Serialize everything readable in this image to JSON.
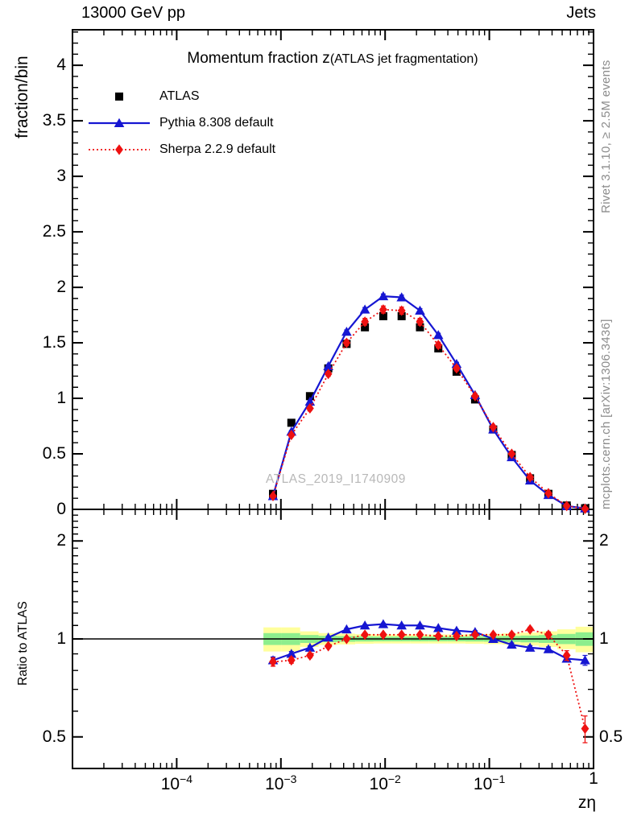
{
  "header": {
    "left": "13000 GeV pp",
    "right": "Jets"
  },
  "title": {
    "main": "Momentum fraction z",
    "paren": "(ATLAS jet fragmentation)"
  },
  "watermark": "ATLAS_2019_I1740909",
  "side_notes": {
    "top": "Rivet 3.1.10, ≥ 2.5M events",
    "bottom": "mcplots.cern.ch [arXiv:1306.3436]"
  },
  "colors": {
    "atlas": "#000000",
    "pythia": "#1616d2",
    "sherpa": "#ee1111",
    "band_yellow": "#ffff9c",
    "band_green": "#8dee8d",
    "gray_text": "#8c8c8c",
    "watermark": "#b8b8b8"
  },
  "legend": [
    {
      "label": "ATLAS",
      "marker": "square",
      "color": "#000000",
      "line": "none"
    },
    {
      "label": "Pythia 8.308 default",
      "marker": "triangle",
      "color": "#1616d2",
      "line": "solid"
    },
    {
      "label": "Sherpa 2.2.9 default",
      "marker": "diamond",
      "color": "#ee1111",
      "line": "dotted"
    }
  ],
  "chart_data": [
    {
      "type": "line",
      "panel": "main",
      "title": "Momentum fraction z (ATLAS jet fragmentation)",
      "xlabel": "zη",
      "ylabel": "fraction/bin",
      "xscale": "log",
      "xlim": [
        1e-05,
        1
      ],
      "ylim": [
        0,
        4.32
      ],
      "yticks": [
        0,
        0.5,
        1,
        1.5,
        2,
        2.5,
        3,
        3.5,
        4
      ],
      "xticks": [
        {
          "base": "10",
          "sup": "−4",
          "z": 0.0001
        },
        {
          "base": "10",
          "sup": "−3",
          "z": 0.001
        },
        {
          "base": "10",
          "sup": "−2",
          "z": 0.01
        },
        {
          "base": "10",
          "sup": "−1",
          "z": 0.1
        },
        {
          "base": "1",
          "sup": "",
          "z": 1
        }
      ],
      "x": [
        0.00084,
        0.00126,
        0.0019,
        0.00285,
        0.00427,
        0.0064,
        0.0096,
        0.0144,
        0.0216,
        0.0324,
        0.0485,
        0.073,
        0.109,
        0.164,
        0.246,
        0.369,
        0.553,
        0.829
      ],
      "series": [
        {
          "name": "ATLAS",
          "marker": "square",
          "color": "#000000",
          "line": "none",
          "values": [
            0.14,
            0.78,
            1.02,
            1.27,
            1.49,
            1.64,
            1.74,
            1.74,
            1.64,
            1.45,
            1.24,
            0.99,
            0.72,
            0.49,
            0.28,
            0.14,
            0.035,
            0.01
          ],
          "err": [
            0.012,
            0.02,
            0.02,
            0.02,
            0.02,
            0.02,
            0.02,
            0.02,
            0.02,
            0.02,
            0.02,
            0.015,
            0.012,
            0.01,
            0.008,
            0.006,
            0.004,
            0.003
          ]
        },
        {
          "name": "Pythia 8.308 default",
          "marker": "triangle",
          "color": "#1616d2",
          "line": "solid",
          "values": [
            0.12,
            0.7,
            0.97,
            1.29,
            1.6,
            1.8,
            1.92,
            1.91,
            1.79,
            1.57,
            1.31,
            1.03,
            0.72,
            0.47,
            0.26,
            0.13,
            0.03,
            0.009
          ],
          "err": [
            0.008,
            0.01,
            0.012,
            0.014,
            0.016,
            0.018,
            0.02,
            0.02,
            0.018,
            0.016,
            0.014,
            0.012,
            0.01,
            0.008,
            0.006,
            0.005,
            0.003,
            0.002
          ]
        },
        {
          "name": "Sherpa 2.2.9 default",
          "marker": "diamond",
          "color": "#ee1111",
          "line": "dotted",
          "values": [
            0.12,
            0.67,
            0.91,
            1.22,
            1.5,
            1.69,
            1.8,
            1.79,
            1.69,
            1.48,
            1.27,
            1.02,
            0.74,
            0.5,
            0.29,
            0.145,
            0.031,
            0.005
          ],
          "err": [
            0.01,
            0.015,
            0.018,
            0.022,
            0.026,
            0.03,
            0.032,
            0.032,
            0.03,
            0.026,
            0.022,
            0.018,
            0.014,
            0.012,
            0.01,
            0.008,
            0.005,
            0.004
          ]
        }
      ]
    },
    {
      "type": "line",
      "panel": "ratio",
      "ylabel": "Ratio to ATLAS",
      "yscale": "log",
      "ylim": [
        0.4,
        2.5
      ],
      "yticks": [
        0.5,
        1,
        2
      ],
      "baseline": 1,
      "x": [
        0.00084,
        0.00126,
        0.0019,
        0.00285,
        0.00427,
        0.0064,
        0.0096,
        0.0144,
        0.0216,
        0.0324,
        0.0485,
        0.073,
        0.109,
        0.164,
        0.246,
        0.369,
        0.553,
        0.829
      ],
      "series": [
        {
          "name": "Pythia 8.308 default",
          "marker": "triangle",
          "color": "#1616d2",
          "line": "solid",
          "values": [
            0.86,
            0.9,
            0.94,
            1.01,
            1.07,
            1.1,
            1.11,
            1.1,
            1.1,
            1.08,
            1.06,
            1.05,
            1.0,
            0.96,
            0.94,
            0.93,
            0.87,
            0.86
          ],
          "err": [
            0.02,
            0.015,
            0.012,
            0.01,
            0.009,
            0.008,
            0.008,
            0.008,
            0.008,
            0.008,
            0.009,
            0.01,
            0.01,
            0.012,
            0.013,
            0.015,
            0.02,
            0.03
          ]
        },
        {
          "name": "Sherpa 2.2.9 default",
          "marker": "diamond",
          "color": "#ee1111",
          "line": "dotted",
          "values": [
            0.85,
            0.86,
            0.89,
            0.95,
            1.0,
            1.03,
            1.03,
            1.03,
            1.03,
            1.02,
            1.02,
            1.03,
            1.03,
            1.03,
            1.07,
            1.03,
            0.89,
            0.53
          ],
          "err": [
            0.025,
            0.018,
            0.015,
            0.012,
            0.011,
            0.01,
            0.01,
            0.01,
            0.01,
            0.01,
            0.011,
            0.012,
            0.012,
            0.014,
            0.016,
            0.02,
            0.03,
            0.05
          ]
        }
      ],
      "band": {
        "bin_edges": [
          0.00068,
          0.00102,
          0.00153,
          0.0023,
          0.00345,
          0.00517,
          0.00776,
          0.0116,
          0.0175,
          0.0262,
          0.0393,
          0.059,
          0.0884,
          0.133,
          0.199,
          0.298,
          0.448,
          0.672,
          1.0
        ],
        "yellow_halfwidth": [
          0.085,
          0.085,
          0.055,
          0.042,
          0.038,
          0.034,
          0.032,
          0.032,
          0.032,
          0.032,
          0.032,
          0.034,
          0.036,
          0.04,
          0.046,
          0.055,
          0.07,
          0.09
        ],
        "green_halfwidth": [
          0.042,
          0.042,
          0.028,
          0.022,
          0.02,
          0.018,
          0.017,
          0.017,
          0.017,
          0.017,
          0.017,
          0.018,
          0.019,
          0.021,
          0.024,
          0.028,
          0.036,
          0.048
        ]
      }
    }
  ]
}
